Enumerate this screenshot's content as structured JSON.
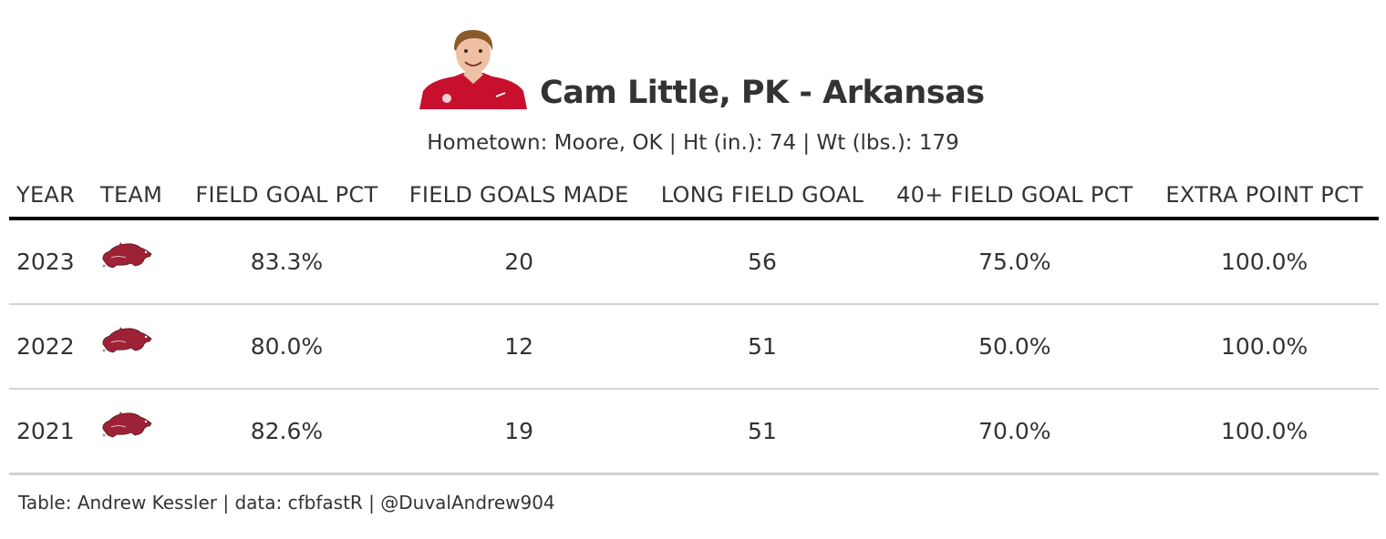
{
  "header": {
    "title": "Cam Little, PK - Arkansas",
    "subtitle": "Hometown: Moore, OK | Ht (in.): 74 | Wt (lbs.): 179",
    "headshot_icon": "player-headshot-icon"
  },
  "chart_data": {
    "type": "table",
    "columns": [
      "YEAR",
      "TEAM",
      "FIELD GOAL PCT",
      "FIELD GOALS MADE",
      "LONG FIELD GOAL",
      "40+ FIELD GOAL PCT",
      "EXTRA POINT PCT"
    ],
    "rows": [
      {
        "year": "2023",
        "team_logo": "arkansas-razorback-icon",
        "fg_pct": "83.3%",
        "fg_made": "20",
        "long_fg": "56",
        "fg40_pct": "75.0%",
        "xp_pct": "100.0%"
      },
      {
        "year": "2022",
        "team_logo": "arkansas-razorback-icon",
        "fg_pct": "80.0%",
        "fg_made": "12",
        "long_fg": "51",
        "fg40_pct": "50.0%",
        "xp_pct": "100.0%"
      },
      {
        "year": "2021",
        "team_logo": "arkansas-razorback-icon",
        "fg_pct": "82.6%",
        "fg_made": "19",
        "long_fg": "51",
        "fg40_pct": "70.0%",
        "xp_pct": "100.0%"
      }
    ],
    "colors": {
      "text": "#333333",
      "header_rule": "#000000",
      "row_rule": "#d3d3d3",
      "logo": "#9d2235"
    }
  },
  "footer": {
    "caption": "Table: Andrew Kessler | data: cfbfastR | @DuvalAndrew904"
  }
}
